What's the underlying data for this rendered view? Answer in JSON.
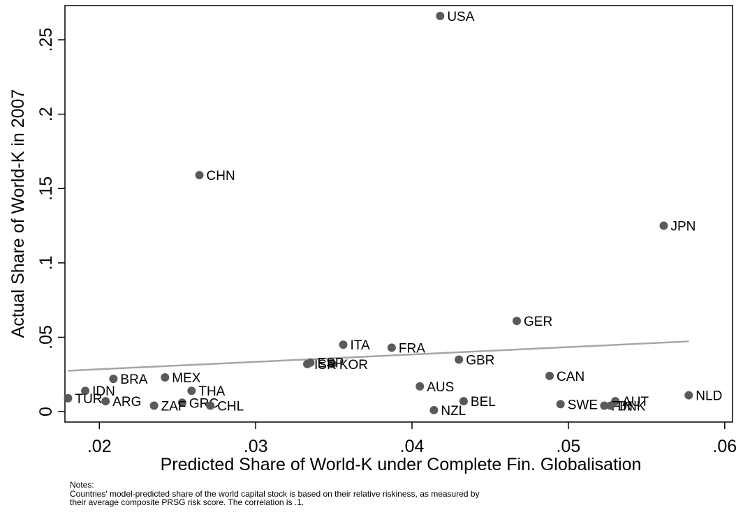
{
  "chart_data": {
    "type": "scatter",
    "xlabel": "Predicted Share of World-K under Complete Fin. Globalisation",
    "ylabel": "Actual Share of World-K in 2007",
    "xlim": [
      0.0178,
      0.0605
    ],
    "ylim": [
      -0.007,
      0.273
    ],
    "xticks": [
      0.02,
      0.03,
      0.04,
      0.05,
      0.06
    ],
    "xtick_labels": [
      ".02",
      ".03",
      ".04",
      ".05",
      ".06"
    ],
    "yticks": [
      0,
      0.05,
      0.1,
      0.15,
      0.2,
      0.25
    ],
    "ytick_labels": [
      "0",
      ".05",
      ".1",
      ".15",
      ".2",
      ".25"
    ],
    "grid": false,
    "legend": "none",
    "marker_color": "#5a5a5a",
    "fit_color": "#a6a6a6",
    "points": [
      {
        "label": "USA",
        "x": 0.0418,
        "y": 0.266
      },
      {
        "label": "CHN",
        "x": 0.0264,
        "y": 0.159
      },
      {
        "label": "JPN",
        "x": 0.0561,
        "y": 0.125
      },
      {
        "label": "GER",
        "x": 0.0467,
        "y": 0.061
      },
      {
        "label": "ITA",
        "x": 0.0356,
        "y": 0.045
      },
      {
        "label": "FRA",
        "x": 0.0387,
        "y": 0.043
      },
      {
        "label": "GBR",
        "x": 0.043,
        "y": 0.035
      },
      {
        "label": "KOR",
        "x": 0.0349,
        "y": 0.032
      },
      {
        "label": "ESP",
        "x": 0.0335,
        "y": 0.033
      },
      {
        "label": "ISR",
        "x": 0.0333,
        "y": 0.032
      },
      {
        "label": "CAN",
        "x": 0.0488,
        "y": 0.024
      },
      {
        "label": "BRA",
        "x": 0.0209,
        "y": 0.022
      },
      {
        "label": "MEX",
        "x": 0.0242,
        "y": 0.023
      },
      {
        "label": "AUS",
        "x": 0.0405,
        "y": 0.017
      },
      {
        "label": "IDN",
        "x": 0.0191,
        "y": 0.014
      },
      {
        "label": "THA",
        "x": 0.0259,
        "y": 0.014
      },
      {
        "label": "NLD",
        "x": 0.0577,
        "y": 0.011
      },
      {
        "label": "TUR",
        "x": 0.018,
        "y": 0.009
      },
      {
        "label": "ARG",
        "x": 0.0204,
        "y": 0.007
      },
      {
        "label": "BEL",
        "x": 0.0433,
        "y": 0.007
      },
      {
        "label": "AUT",
        "x": 0.053,
        "y": 0.007
      },
      {
        "label": "GRC",
        "x": 0.0253,
        "y": 0.006
      },
      {
        "label": "SWE",
        "x": 0.0495,
        "y": 0.005
      },
      {
        "label": "CHL",
        "x": 0.0271,
        "y": 0.004
      },
      {
        "label": "ZAF",
        "x": 0.0235,
        "y": 0.004
      },
      {
        "label": "FIN",
        "x": 0.0523,
        "y": 0.004
      },
      {
        "label": "DNK",
        "x": 0.0527,
        "y": 0.004
      },
      {
        "label": "NZL",
        "x": 0.0414,
        "y": 0.001
      }
    ],
    "fit_line": {
      "x": [
        0.018,
        0.0577
      ],
      "y": [
        0.0275,
        0.0472
      ]
    }
  },
  "notes": {
    "heading": "Notes:",
    "line1": "Countries' model-predicted share of the world capital stock is based on their relative riskiness, as measured by",
    "line2": "their average composite PRSG risk score. The correlation is .1."
  }
}
